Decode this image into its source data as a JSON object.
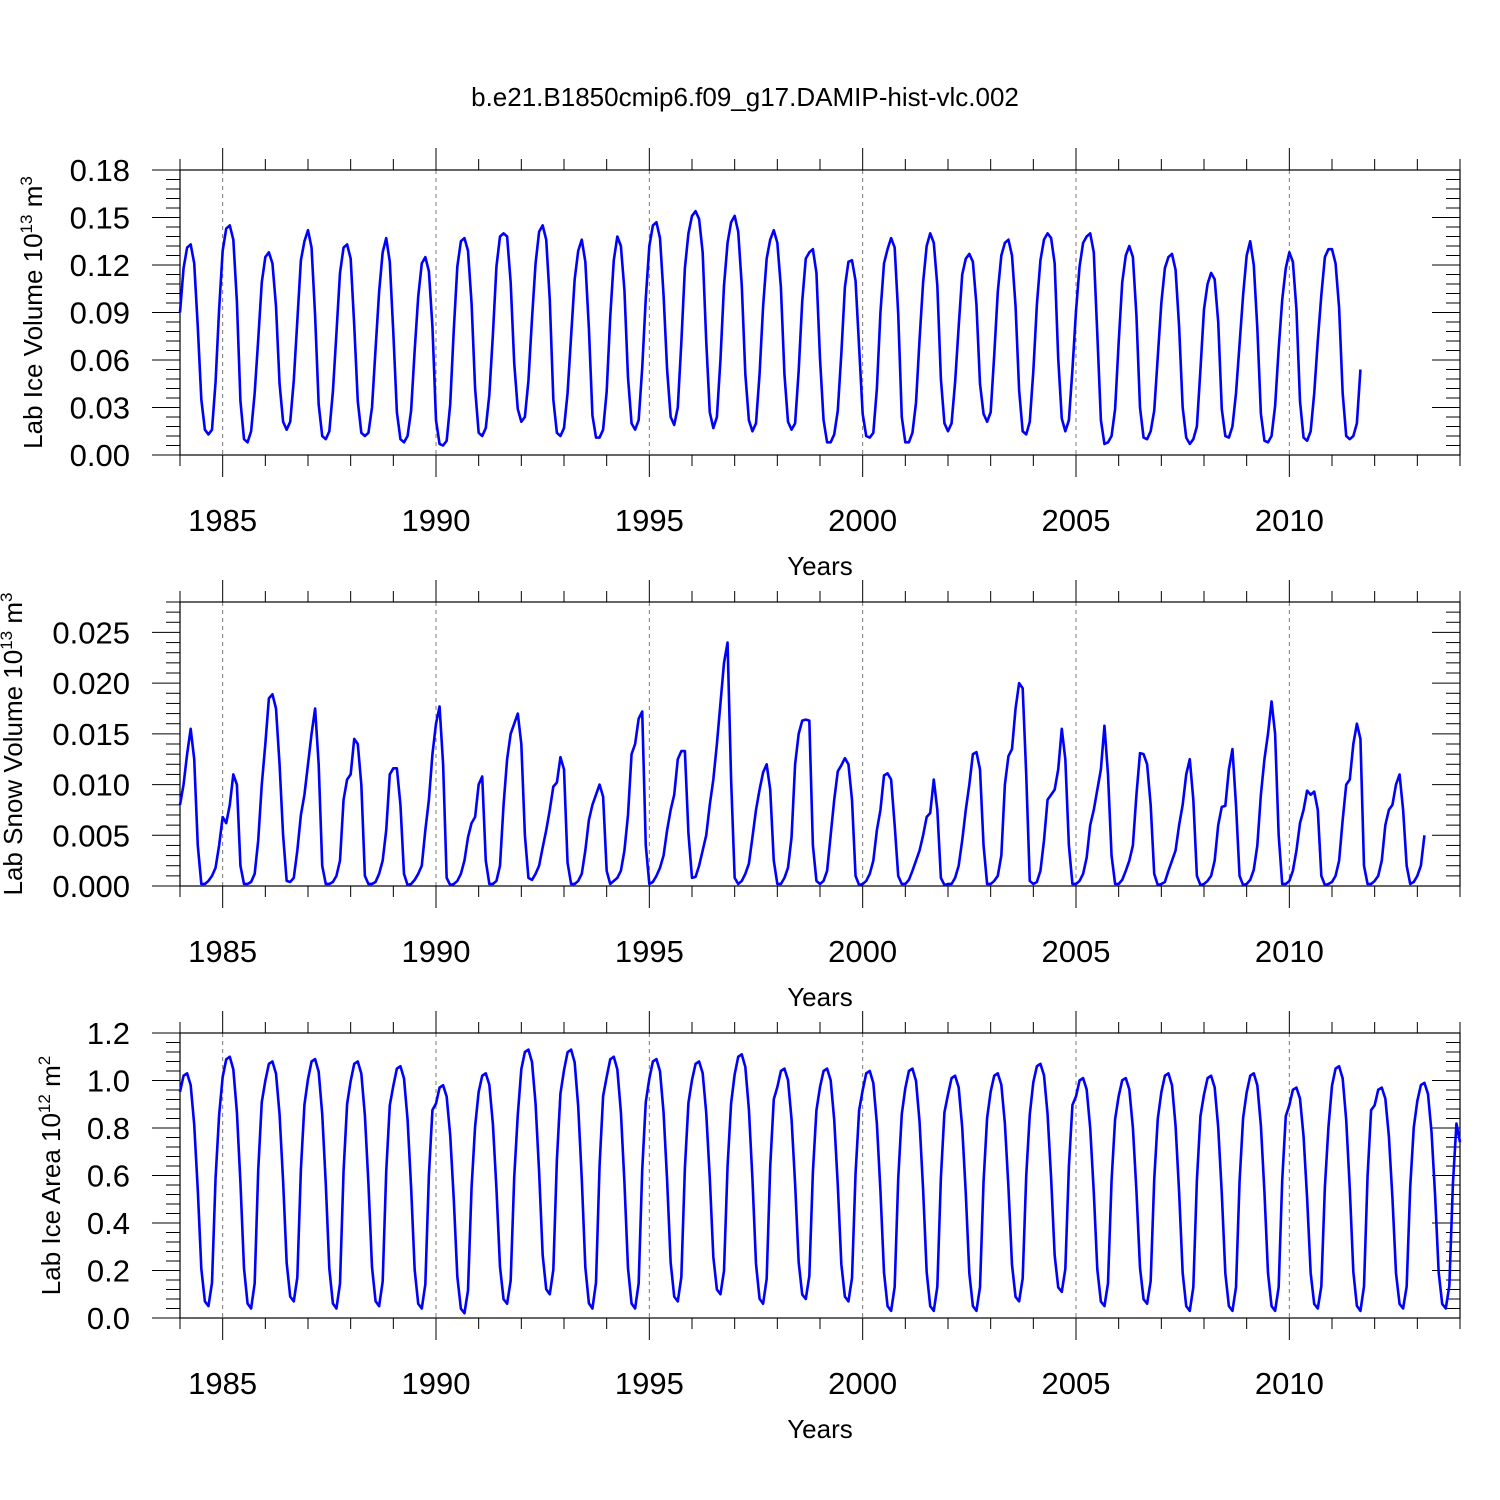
{
  "figure": {
    "title": "b.e21.B1850cmip6.f09_g17.DAMIP-hist-vlc.002"
  },
  "chart_data": [
    {
      "type": "line",
      "title": "",
      "ylabel": "Lab Ice Volume 10",
      "ylabel_exp": "13",
      "ylabel_unit": " m",
      "ylabel_unit_exp": "3",
      "xlabel": "Years",
      "xlim": [
        1984.0,
        2014.0
      ],
      "ylim": [
        0.0,
        0.18
      ],
      "y_ticks": [
        0.0,
        0.03,
        0.06,
        0.09,
        0.12,
        0.15,
        0.18
      ],
      "y_tick_labels": [
        "0.00",
        "0.03",
        "0.06",
        "0.09",
        "0.12",
        "0.15",
        "0.18"
      ],
      "x_ticks": [
        1985,
        1990,
        1995,
        2000,
        2005,
        2010
      ],
      "x_tick_labels": [
        "1985",
        "1990",
        "1995",
        "2000",
        "2005",
        "2010"
      ],
      "grid": "dashed vertical lines at labeled years",
      "series_color": "#0000ff",
      "x_start": 1984.0,
      "x_step_months": 1,
      "series": [
        {
          "values": [
            0.09,
            0.118,
            0.131,
            0.133,
            0.121,
            0.081,
            0.035,
            0.016,
            0.013,
            0.016,
            0.046,
            0.092,
            0.129,
            0.143,
            0.145,
            0.136,
            0.097,
            0.034,
            0.01,
            0.008,
            0.015,
            0.039,
            0.073,
            0.109,
            0.125,
            0.128,
            0.121,
            0.094,
            0.045,
            0.021,
            0.016,
            0.021,
            0.047,
            0.085,
            0.123,
            0.135,
            0.142,
            0.131,
            0.088,
            0.032,
            0.012,
            0.01,
            0.015,
            0.04,
            0.077,
            0.115,
            0.131,
            0.133,
            0.124,
            0.082,
            0.034,
            0.014,
            0.012,
            0.014,
            0.03,
            0.067,
            0.103,
            0.128,
            0.137,
            0.122,
            0.077,
            0.027,
            0.01,
            0.008,
            0.012,
            0.028,
            0.066,
            0.1,
            0.121,
            0.125,
            0.116,
            0.081,
            0.022,
            0.007,
            0.006,
            0.009,
            0.032,
            0.079,
            0.119,
            0.135,
            0.137,
            0.129,
            0.096,
            0.042,
            0.014,
            0.012,
            0.017,
            0.038,
            0.076,
            0.119,
            0.138,
            0.14,
            0.138,
            0.109,
            0.058,
            0.029,
            0.021,
            0.024,
            0.047,
            0.086,
            0.121,
            0.141,
            0.145,
            0.136,
            0.098,
            0.035,
            0.014,
            0.012,
            0.017,
            0.039,
            0.075,
            0.111,
            0.129,
            0.136,
            0.122,
            0.08,
            0.025,
            0.011,
            0.011,
            0.016,
            0.04,
            0.087,
            0.123,
            0.138,
            0.132,
            0.104,
            0.049,
            0.02,
            0.016,
            0.022,
            0.055,
            0.099,
            0.132,
            0.145,
            0.147,
            0.137,
            0.101,
            0.054,
            0.024,
            0.019,
            0.03,
            0.071,
            0.118,
            0.14,
            0.151,
            0.154,
            0.149,
            0.128,
            0.072,
            0.027,
            0.017,
            0.024,
            0.06,
            0.107,
            0.134,
            0.147,
            0.151,
            0.141,
            0.107,
            0.051,
            0.022,
            0.015,
            0.02,
            0.051,
            0.094,
            0.124,
            0.136,
            0.142,
            0.134,
            0.106,
            0.051,
            0.021,
            0.016,
            0.02,
            0.053,
            0.097,
            0.124,
            0.128,
            0.13,
            0.115,
            0.061,
            0.022,
            0.008,
            0.008,
            0.013,
            0.028,
            0.064,
            0.106,
            0.122,
            0.123,
            0.11,
            0.068,
            0.026,
            0.012,
            0.011,
            0.014,
            0.042,
            0.09,
            0.121,
            0.13,
            0.137,
            0.131,
            0.089,
            0.024,
            0.008,
            0.008,
            0.014,
            0.033,
            0.073,
            0.109,
            0.132,
            0.14,
            0.134,
            0.107,
            0.048,
            0.02,
            0.015,
            0.02,
            0.046,
            0.081,
            0.114,
            0.124,
            0.127,
            0.122,
            0.095,
            0.045,
            0.026,
            0.021,
            0.027,
            0.063,
            0.103,
            0.126,
            0.134,
            0.136,
            0.126,
            0.094,
            0.041,
            0.015,
            0.013,
            0.021,
            0.053,
            0.095,
            0.123,
            0.136,
            0.14,
            0.137,
            0.121,
            0.061,
            0.023,
            0.015,
            0.022,
            0.054,
            0.091,
            0.119,
            0.134,
            0.138,
            0.14,
            0.128,
            0.076,
            0.022,
            0.007,
            0.008,
            0.012,
            0.029,
            0.071,
            0.109,
            0.126,
            0.132,
            0.125,
            0.088,
            0.03,
            0.011,
            0.01,
            0.015,
            0.028,
            0.062,
            0.096,
            0.118,
            0.125,
            0.127,
            0.117,
            0.081,
            0.03,
            0.011,
            0.007,
            0.01,
            0.018,
            0.054,
            0.092,
            0.108,
            0.115,
            0.111,
            0.084,
            0.029,
            0.012,
            0.011,
            0.018,
            0.039,
            0.07,
            0.101,
            0.126,
            0.135,
            0.12,
            0.08,
            0.026,
            0.009,
            0.008,
            0.012,
            0.031,
            0.067,
            0.098,
            0.118,
            0.128,
            0.122,
            0.092,
            0.034,
            0.011,
            0.009,
            0.015,
            0.039,
            0.072,
            0.101,
            0.125,
            0.13,
            0.13,
            0.121,
            0.093,
            0.039,
            0.012,
            0.01,
            0.012,
            0.02,
            0.054
          ]
        }
      ]
    },
    {
      "type": "line",
      "title": "",
      "ylabel": "Lab Snow Volume 10",
      "ylabel_exp": "13",
      "ylabel_unit": " m",
      "ylabel_unit_exp": "3",
      "xlabel": "Years",
      "xlim": [
        1984.0,
        2014.0
      ],
      "ylim": [
        0.0,
        0.028
      ],
      "y_ticks": [
        0.0,
        0.005,
        0.01,
        0.015,
        0.02,
        0.025
      ],
      "y_tick_labels": [
        "0.000",
        "0.005",
        "0.010",
        "0.015",
        "0.020",
        "0.025"
      ],
      "x_ticks": [
        1985,
        1990,
        1995,
        2000,
        2005,
        2010
      ],
      "x_tick_labels": [
        "1985",
        "1990",
        "1995",
        "2000",
        "2005",
        "2010"
      ],
      "grid": "dashed vertical lines at labeled years",
      "series_color": "#0000ff",
      "x_start": 1984.0,
      "x_step_months": 1,
      "series": [
        {
          "values": [
            0.008,
            0.01,
            0.013,
            0.0155,
            0.0125,
            0.004,
            0.0002,
            0.0002,
            0.0005,
            0.001,
            0.0018,
            0.004,
            0.0068,
            0.0062,
            0.008,
            0.011,
            0.01,
            0.002,
            0.0002,
            0.0002,
            0.0004,
            0.0012,
            0.0045,
            0.01,
            0.014,
            0.0185,
            0.0189,
            0.0175,
            0.012,
            0.005,
            0.0005,
            0.0004,
            0.0008,
            0.0035,
            0.007,
            0.009,
            0.012,
            0.015,
            0.0175,
            0.012,
            0.002,
            0.0002,
            0.0002,
            0.0004,
            0.001,
            0.0025,
            0.0085,
            0.0105,
            0.011,
            0.0145,
            0.014,
            0.01,
            0.001,
            0.0002,
            0.0002,
            0.0004,
            0.0012,
            0.0025,
            0.0055,
            0.011,
            0.0116,
            0.0116,
            0.008,
            0.0012,
            0.0001,
            0.0002,
            0.0006,
            0.0012,
            0.002,
            0.0055,
            0.0085,
            0.013,
            0.016,
            0.0177,
            0.012,
            0.0008,
            0.0001,
            0.0002,
            0.0005,
            0.0012,
            0.0025,
            0.0048,
            0.0062,
            0.0068,
            0.01,
            0.0108,
            0.0025,
            0.0002,
            0.0002,
            0.0005,
            0.002,
            0.008,
            0.0125,
            0.015,
            0.016,
            0.017,
            0.014,
            0.005,
            0.0008,
            0.0006,
            0.0012,
            0.002,
            0.0038,
            0.0055,
            0.0075,
            0.0098,
            0.0102,
            0.0127,
            0.0115,
            0.0023,
            0.0002,
            0.0002,
            0.0005,
            0.0012,
            0.0035,
            0.0065,
            0.008,
            0.009,
            0.01,
            0.0088,
            0.0015,
            0.0002,
            0.0005,
            0.0008,
            0.0015,
            0.0035,
            0.007,
            0.013,
            0.014,
            0.0165,
            0.0172,
            0.004,
            0.0002,
            0.0004,
            0.001,
            0.0018,
            0.003,
            0.0055,
            0.0075,
            0.009,
            0.0125,
            0.0133,
            0.0133,
            0.0052,
            0.0008,
            0.0009,
            0.002,
            0.0035,
            0.005,
            0.008,
            0.0105,
            0.014,
            0.018,
            0.022,
            0.024,
            0.0105,
            0.0008,
            0.0002,
            0.0005,
            0.0012,
            0.0022,
            0.0048,
            0.0075,
            0.0095,
            0.0112,
            0.012,
            0.0095,
            0.0025,
            0.0002,
            0.0002,
            0.0008,
            0.0018,
            0.0048,
            0.012,
            0.015,
            0.0163,
            0.0164,
            0.0163,
            0.004,
            0.0005,
            0.0002,
            0.0005,
            0.0015,
            0.005,
            0.0085,
            0.0113,
            0.0119,
            0.0126,
            0.012,
            0.0085,
            0.001,
            0.0001,
            0.0002,
            0.0005,
            0.0012,
            0.0025,
            0.0055,
            0.0075,
            0.0109,
            0.0111,
            0.0105,
            0.006,
            0.001,
            0.0002,
            0.0002,
            0.0006,
            0.0015,
            0.0025,
            0.0035,
            0.005,
            0.0068,
            0.0072,
            0.0105,
            0.0075,
            0.0008,
            0.0001,
            0.0002,
            0.0002,
            0.0008,
            0.002,
            0.0045,
            0.0075,
            0.01,
            0.013,
            0.0132,
            0.0115,
            0.004,
            0.0002,
            0.0002,
            0.0005,
            0.001,
            0.003,
            0.01,
            0.0128,
            0.0135,
            0.0175,
            0.02,
            0.0195,
            0.011,
            0.0005,
            0.0002,
            0.0004,
            0.0015,
            0.0045,
            0.0085,
            0.009,
            0.0095,
            0.0115,
            0.0155,
            0.0125,
            0.004,
            0.0002,
            0.0002,
            0.0005,
            0.0012,
            0.0028,
            0.006,
            0.0075,
            0.0095,
            0.0115,
            0.0158,
            0.011,
            0.003,
            0.0002,
            0.0002,
            0.0006,
            0.0015,
            0.0025,
            0.004,
            0.009,
            0.0131,
            0.013,
            0.012,
            0.008,
            0.0012,
            0.0001,
            0.0002,
            0.0004,
            0.0015,
            0.0025,
            0.0035,
            0.006,
            0.008,
            0.011,
            0.0125,
            0.0085,
            0.001,
            0.0001,
            0.0002,
            0.0005,
            0.001,
            0.0025,
            0.006,
            0.0078,
            0.0079,
            0.0115,
            0.0135,
            0.008,
            0.001,
            0.0001,
            0.0002,
            0.0006,
            0.0016,
            0.004,
            0.009,
            0.0125,
            0.015,
            0.0182,
            0.015,
            0.005,
            0.0002,
            0.0002,
            0.0005,
            0.0015,
            0.0035,
            0.0062,
            0.0075,
            0.0094,
            0.009,
            0.0093,
            0.0075,
            0.001,
            0.0001,
            0.0002,
            0.0004,
            0.001,
            0.0025,
            0.0065,
            0.01,
            0.0105,
            0.014,
            0.016,
            0.0145,
            0.002,
            0.0002,
            0.0002,
            0.0005,
            0.001,
            0.0025,
            0.006,
            0.0075,
            0.008,
            0.01,
            0.011,
            0.0075,
            0.002,
            0.0002,
            0.0004,
            0.001,
            0.002,
            0.005
          ]
        }
      ]
    },
    {
      "type": "line",
      "title": "",
      "ylabel": "Lab Ice Area 10",
      "ylabel_exp": "12",
      "ylabel_unit": " m",
      "ylabel_unit_exp": "2",
      "xlabel": "Years",
      "xlim": [
        1984.0,
        2014.0
      ],
      "ylim": [
        0.0,
        1.2
      ],
      "y_ticks": [
        0.0,
        0.2,
        0.4,
        0.6,
        0.8,
        1.0,
        1.2
      ],
      "y_tick_labels": [
        "0.0",
        "0.2",
        "0.4",
        "0.6",
        "0.8",
        "1.0",
        "1.2"
      ],
      "x_ticks": [
        1985,
        1990,
        1995,
        2000,
        2005,
        2010
      ],
      "x_tick_labels": [
        "1985",
        "1990",
        "1995",
        "2000",
        "2005",
        "2010"
      ],
      "grid": "dashed vertical lines at labeled years",
      "series_color": "#0000ff",
      "x_start": 1984.0,
      "x_step_months": 1
    }
  ]
}
